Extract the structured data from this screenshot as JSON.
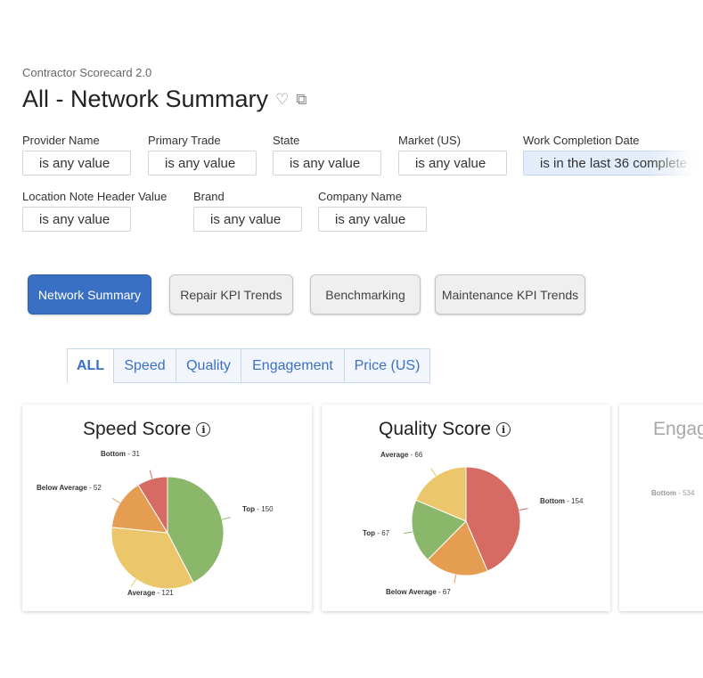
{
  "header": {
    "subtitle": "Contractor Scorecard 2.0",
    "title": "All - Network Summary",
    "favorite_icon": "heart-icon",
    "copy_icon": "add-copy-icon"
  },
  "filters": [
    {
      "label": "Provider Name",
      "value": "is any value"
    },
    {
      "label": "Primary Trade",
      "value": "is any value"
    },
    {
      "label": "State",
      "value": "is any value"
    },
    {
      "label": "Market (US)",
      "value": "is any value"
    },
    {
      "label": "Work Completion Date",
      "value": "is in the last 36 complete"
    },
    {
      "label": "Location Note Header Value",
      "value": "is any value"
    },
    {
      "label": "Brand",
      "value": "is any value"
    },
    {
      "label": "Company Name",
      "value": "is any value"
    }
  ],
  "nav_buttons": [
    "Network Summary",
    "Repair KPI Trends",
    "Benchmarking",
    "Maintenance KPI Trends"
  ],
  "tabs": [
    "ALL",
    "Speed",
    "Quality",
    "Engagement",
    "Price (US)"
  ],
  "colors": {
    "Top": "#8ab76a",
    "Average": "#ecc66a",
    "Below Average": "#e59d52",
    "Bottom": "#d56b62"
  },
  "chart_data": [
    {
      "type": "pie",
      "title": "Speed Score",
      "slices": [
        {
          "label": "Top",
          "value": 150
        },
        {
          "label": "Average",
          "value": 121
        },
        {
          "label": "Below Average",
          "value": 52
        },
        {
          "label": "Bottom",
          "value": 31
        }
      ]
    },
    {
      "type": "pie",
      "title": "Quality Score",
      "slices": [
        {
          "label": "Bottom",
          "value": 154
        },
        {
          "label": "Below Average",
          "value": 67
        },
        {
          "label": "Top",
          "value": 67
        },
        {
          "label": "Average",
          "value": 66
        }
      ]
    },
    {
      "type": "pie",
      "title": "Engag",
      "slices": [
        {
          "label": "Bottom",
          "value": 534
        }
      ]
    }
  ]
}
